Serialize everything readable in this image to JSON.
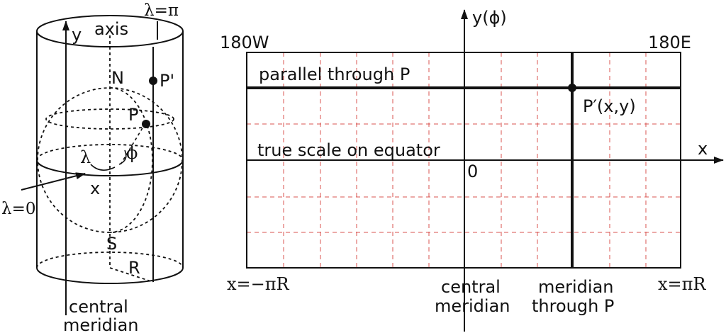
{
  "cylinder": {
    "axis": "axis",
    "y": "y",
    "x": "x",
    "lambda_pi": "λ=π",
    "lambda_zero": "λ=0",
    "north": "N",
    "south": "S",
    "p_prime": "P'",
    "p": "P",
    "lambda": "λ",
    "phi": "ϕ",
    "r": "R",
    "central_line1": "central",
    "central_line2": "meridian"
  },
  "map": {
    "y_axis_label": "y(ϕ)",
    "x_axis_label": "x",
    "left_edge_top": "180W",
    "right_edge_top": "180E",
    "parallel_label": "parallel through P",
    "point_label": "P′(x,y)",
    "equator_label": "true scale on equator",
    "origin": "0",
    "left_edge_bottom": "x=−πR",
    "right_edge_bottom": "x=πR",
    "central_line1": "central",
    "central_line2": "meridian",
    "meridian_line1": "meridian",
    "meridian_line2": "through P"
  },
  "colors": {
    "ink": "#111111",
    "grid": "#d9534f"
  }
}
